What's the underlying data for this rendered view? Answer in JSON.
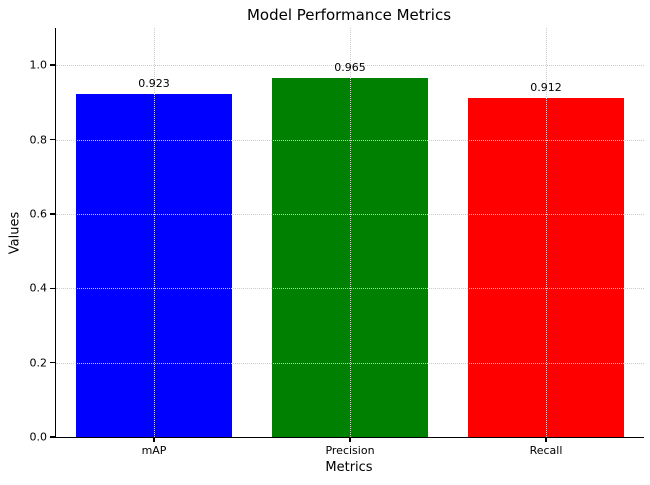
{
  "chart_data": {
    "type": "bar",
    "title": "Model Performance Metrics",
    "xlabel": "Metrics",
    "ylabel": "Values",
    "categories": [
      "mAP",
      "Precision",
      "Recall"
    ],
    "values": [
      0.923,
      0.965,
      0.912
    ],
    "value_labels": [
      "0.923",
      "0.965",
      "0.912"
    ],
    "bar_colors": [
      "#0000ff",
      "#008000",
      "#ff0000"
    ],
    "bar_width_fraction": 0.8,
    "ylim": [
      0,
      1.1
    ],
    "yticks": [
      0.0,
      0.2,
      0.4,
      0.6,
      0.8,
      1.0
    ],
    "ytick_labels": [
      "0.0",
      "0.2",
      "0.4",
      "0.6",
      "0.8",
      "1.0"
    ],
    "grid": true,
    "grid_linestyle": "dotted",
    "grid_color": "#cccccc",
    "grid_above_bars": true,
    "legend_position": "none",
    "text_color": "#000000",
    "spine_color": "#000000",
    "background_color": "#ffffff"
  }
}
